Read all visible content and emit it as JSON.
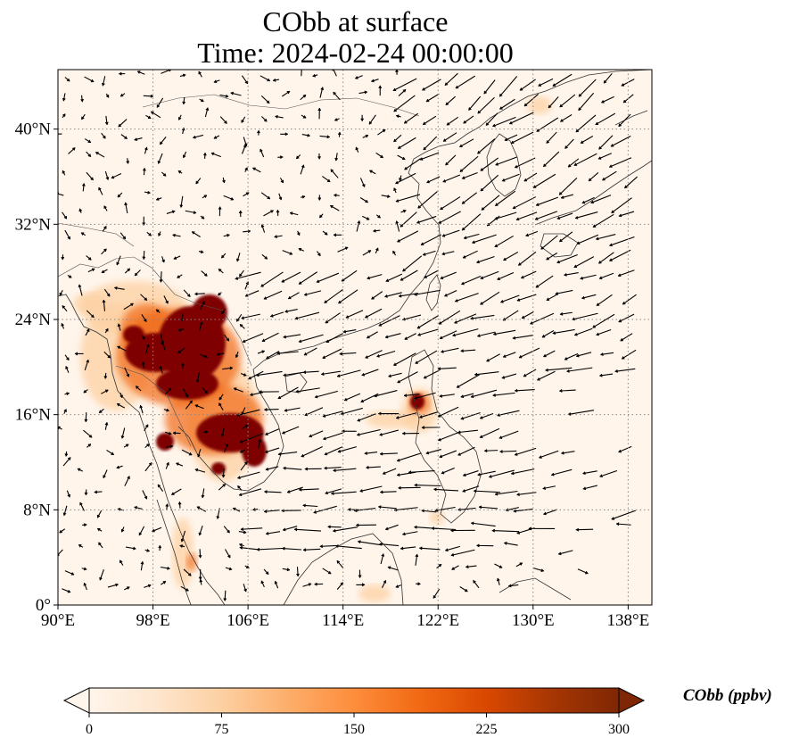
{
  "title": {
    "line1": "CObb at surface",
    "line2": "Time: 2024-02-24 00:00:00"
  },
  "axes": {
    "x_ticks": [
      "90°E",
      "98°E",
      "106°E",
      "114°E",
      "122°E",
      "130°E",
      "138°E"
    ],
    "y_ticks": [
      "0°",
      "8°N",
      "16°N",
      "24°N",
      "32°N",
      "40°N"
    ],
    "x_range_deg": [
      90,
      140
    ],
    "y_range_deg": [
      0,
      45
    ],
    "gridlines": "dotted"
  },
  "colorbar": {
    "label": "CObb (ppbv)",
    "ticks": [
      "0",
      "75",
      "150",
      "225",
      "300"
    ],
    "min": 0,
    "max": 300,
    "colormap": [
      "#fff5eb",
      "#fee6ce",
      "#fdd0a2",
      "#fdae6b",
      "#fd8d3c",
      "#f16913",
      "#d94801",
      "#a63603",
      "#7f2704"
    ],
    "extend": "both"
  },
  "colors": {
    "background_low": "#fff5eb",
    "high": "#7f0000",
    "wind_arrow": "#000000"
  }
}
